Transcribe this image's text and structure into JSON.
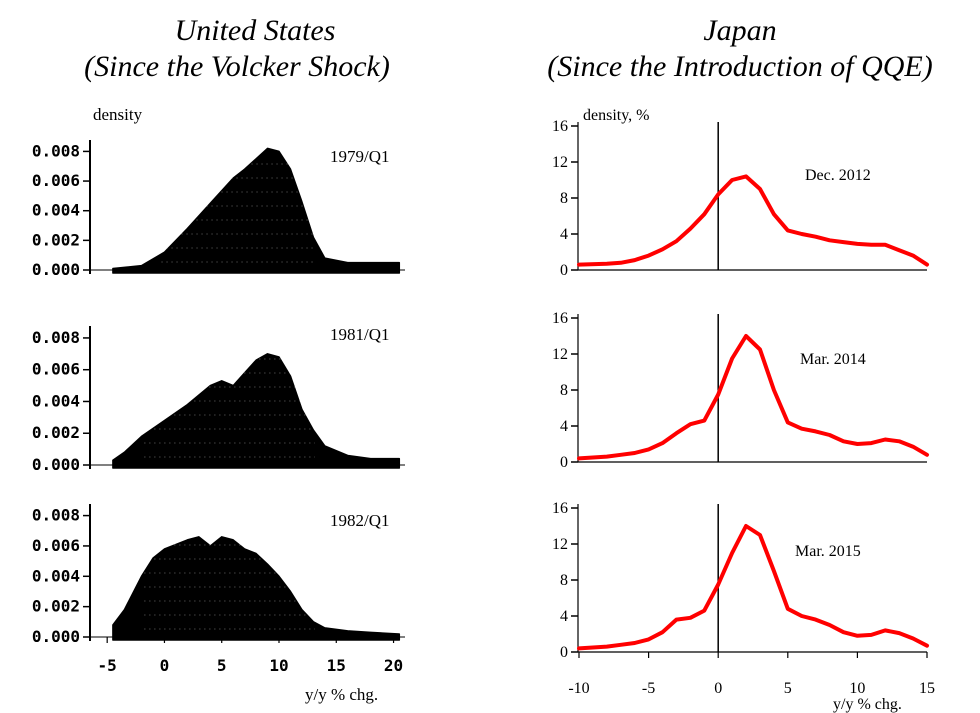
{
  "titles": {
    "us_line1": "United States",
    "us_line2": "(Since the Volcker Shock)",
    "jp_line1": "Japan",
    "jp_line2": "(Since the Introduction of QQE)"
  },
  "us_ylabel": "density",
  "us_xlabel": "y/y % chg.",
  "jp_ylabel": "density, %",
  "jp_xlabel": "y/y % chg.",
  "chart_data": [
    {
      "type": "area",
      "panel": "us-1979",
      "annotation": "1979/Q1",
      "ylim": [
        0,
        0.0085
      ],
      "xlim": [
        -6.5,
        21
      ],
      "yticks": [
        "0.008",
        "0.006",
        "0.004",
        "0.002",
        "0.000"
      ],
      "ytick_values": [
        0.008,
        0.006,
        0.004,
        0.002,
        0.0
      ],
      "x": [
        -4.5,
        -2,
        0,
        2,
        4,
        6,
        7,
        8,
        9,
        10,
        11,
        12,
        13,
        14,
        16,
        18,
        20.5
      ],
      "values": [
        0.0001,
        0.0003,
        0.0012,
        0.0028,
        0.0045,
        0.0062,
        0.0068,
        0.0075,
        0.0082,
        0.008,
        0.0068,
        0.0046,
        0.0022,
        0.0008,
        0.0005,
        0.0005,
        0.0005
      ]
    },
    {
      "type": "area",
      "panel": "us-1981",
      "annotation": "1981/Q1",
      "ylim": [
        0,
        0.0085
      ],
      "xlim": [
        -6.5,
        21
      ],
      "yticks": [
        "0.008",
        "0.006",
        "0.004",
        "0.002",
        "0.000"
      ],
      "ytick_values": [
        0.008,
        0.006,
        0.004,
        0.002,
        0.0
      ],
      "x": [
        -4.5,
        -3.5,
        -2,
        0,
        2,
        4,
        5,
        6,
        7,
        8,
        9,
        10,
        11,
        12,
        13,
        14,
        16,
        18,
        20.5
      ],
      "values": [
        0.0003,
        0.0008,
        0.0018,
        0.0028,
        0.0038,
        0.005,
        0.0053,
        0.005,
        0.0058,
        0.0066,
        0.007,
        0.0068,
        0.0056,
        0.0035,
        0.0022,
        0.0012,
        0.0006,
        0.0004,
        0.0004
      ]
    },
    {
      "type": "area",
      "panel": "us-1982",
      "annotation": "1982/Q1",
      "ylim": [
        0,
        0.0085
      ],
      "xlim": [
        -6.5,
        21
      ],
      "xticks": [
        "-5",
        "0",
        "5",
        "10",
        "15",
        "20"
      ],
      "xtick_values": [
        -5,
        0,
        5,
        10,
        15,
        20
      ],
      "yticks": [
        "0.008",
        "0.006",
        "0.004",
        "0.002",
        "0.000"
      ],
      "ytick_values": [
        0.008,
        0.006,
        0.004,
        0.002,
        0.0
      ],
      "x": [
        -4.5,
        -3.5,
        -2,
        -1,
        0,
        2,
        3,
        4,
        5,
        6,
        7,
        8,
        9,
        10,
        11,
        12,
        13,
        14,
        16,
        18,
        20.5
      ],
      "values": [
        0.0008,
        0.0018,
        0.004,
        0.0052,
        0.0058,
        0.0064,
        0.0066,
        0.006,
        0.0066,
        0.0064,
        0.0058,
        0.0055,
        0.0048,
        0.004,
        0.003,
        0.0018,
        0.001,
        0.0006,
        0.0004,
        0.0003,
        0.0002
      ]
    },
    {
      "type": "line",
      "panel": "jp-2012",
      "annotation": "Dec. 2012",
      "color": "#ff0000",
      "ylim": [
        0,
        16
      ],
      "xlim": [
        -10,
        15
      ],
      "yticks": [
        "16",
        "12",
        "8",
        "4",
        "0"
      ],
      "ytick_values": [
        16,
        12,
        8,
        4,
        0
      ],
      "x": [
        -10,
        -8,
        -7,
        -6,
        -5,
        -4,
        -3,
        -2,
        -1,
        0,
        1,
        2,
        3,
        4,
        5,
        6,
        7,
        8,
        9,
        10,
        11,
        12,
        13,
        14,
        15
      ],
      "values": [
        0.6,
        0.7,
        0.8,
        1.1,
        1.6,
        2.3,
        3.2,
        4.6,
        6.2,
        8.4,
        10.0,
        10.4,
        9.0,
        6.2,
        4.4,
        4.0,
        3.7,
        3.3,
        3.1,
        2.9,
        2.8,
        2.8,
        2.2,
        1.6,
        0.6
      ]
    },
    {
      "type": "line",
      "panel": "jp-2014",
      "annotation": "Mar. 2014",
      "color": "#ff0000",
      "ylim": [
        0,
        16
      ],
      "xlim": [
        -10,
        15
      ],
      "yticks": [
        "16",
        "12",
        "8",
        "4",
        "0"
      ],
      "ytick_values": [
        16,
        12,
        8,
        4,
        0
      ],
      "x": [
        -10,
        -8,
        -7,
        -6,
        -5,
        -4,
        -3,
        -2,
        -1,
        0,
        1,
        2,
        3,
        4,
        5,
        6,
        7,
        8,
        9,
        10,
        11,
        12,
        13,
        14,
        15
      ],
      "values": [
        0.4,
        0.6,
        0.8,
        1.0,
        1.4,
        2.1,
        3.2,
        4.2,
        4.6,
        7.5,
        11.5,
        14.0,
        12.5,
        8.0,
        4.4,
        3.7,
        3.4,
        3.0,
        2.3,
        2.0,
        2.1,
        2.5,
        2.3,
        1.7,
        0.8
      ]
    },
    {
      "type": "line",
      "panel": "jp-2015",
      "annotation": "Mar. 2015",
      "color": "#ff0000",
      "ylim": [
        0,
        16
      ],
      "xlim": [
        -10,
        15
      ],
      "xticks": [
        "-10",
        "-5",
        "0",
        "5",
        "10",
        "15"
      ],
      "xtick_values": [
        -10,
        -5,
        0,
        5,
        10,
        15
      ],
      "yticks": [
        "16",
        "12",
        "8",
        "4",
        "0"
      ],
      "ytick_values": [
        16,
        12,
        8,
        4,
        0
      ],
      "x": [
        -10,
        -8,
        -7,
        -6,
        -5,
        -4,
        -3,
        -2,
        -1,
        0,
        1,
        2,
        3,
        4,
        5,
        6,
        7,
        8,
        9,
        10,
        11,
        12,
        13,
        14,
        15
      ],
      "values": [
        0.4,
        0.6,
        0.8,
        1.0,
        1.4,
        2.2,
        3.6,
        3.8,
        4.6,
        7.5,
        11.0,
        14.0,
        13.0,
        9.0,
        4.8,
        4.0,
        3.6,
        3.0,
        2.2,
        1.8,
        1.9,
        2.4,
        2.1,
        1.5,
        0.7
      ]
    }
  ]
}
